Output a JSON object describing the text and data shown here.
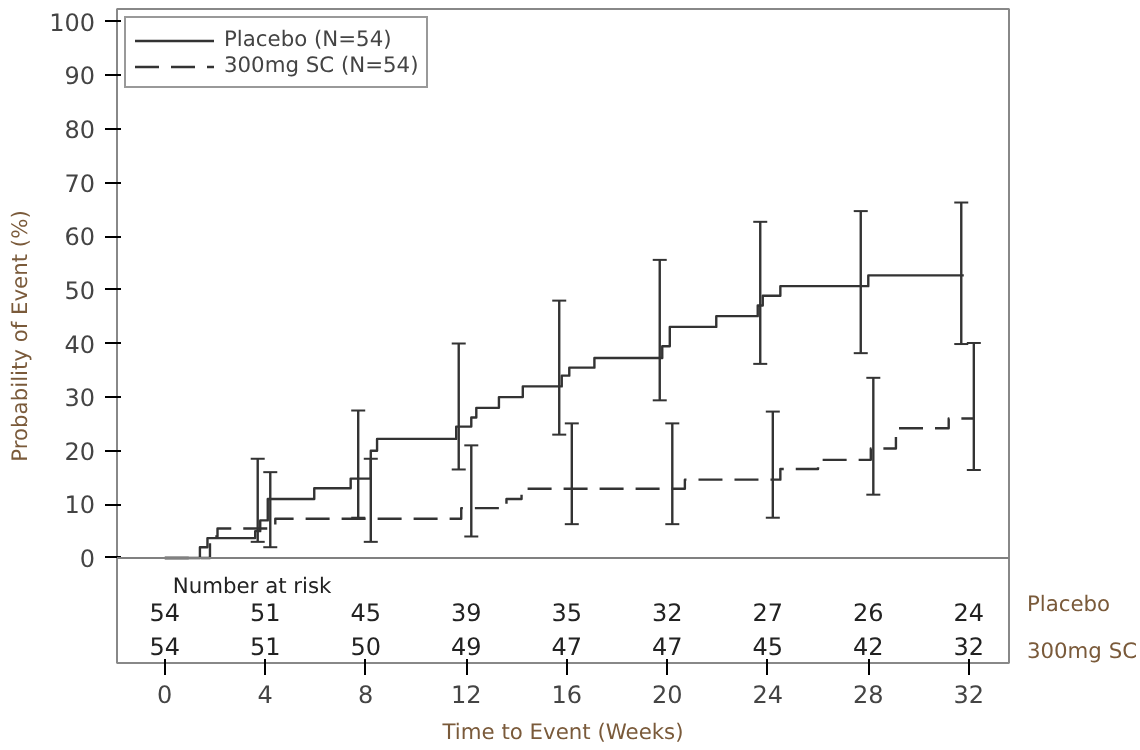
{
  "chart_data": {
    "type": "step",
    "xlabel": "Time to Event (Weeks)",
    "ylabel": "Probability of Event (%)",
    "xlim": [
      -1.9,
      33.6
    ],
    "ylim": [
      -19.6,
      102.4
    ],
    "xticks": [
      0,
      4,
      8,
      12,
      16,
      20,
      24,
      28,
      32
    ],
    "yticks": [
      0,
      10,
      20,
      30,
      40,
      50,
      60,
      70,
      80,
      90,
      100
    ],
    "grid": false,
    "legend": "top left",
    "ref_lines": [
      {
        "axis": "y",
        "value": 0,
        "color": "#808080",
        "line_style": "solid"
      }
    ],
    "series": [
      {
        "name": "Placebo (N=54)",
        "color": "#333333",
        "line_style": "solid",
        "x": [
          0,
          1.4,
          1.7,
          3.6,
          3.7,
          3.8,
          4.1,
          5.95,
          7.4,
          7.7,
          8.2,
          8.45,
          11.6,
          11.7,
          12.2,
          12.4,
          13.3,
          14.25,
          15.7,
          15.8,
          16.1,
          17.1,
          19.7,
          19.8,
          20.1,
          21.95,
          23.6,
          23.7,
          23.8,
          24.5,
          27.7,
          28.0,
          31.7,
          31.8
        ],
        "values": [
          0,
          2,
          3.7,
          5,
          5,
          7,
          11,
          13,
          14.8,
          14.8,
          20,
          22.2,
          24.5,
          24.5,
          26.2,
          28,
          30,
          32,
          32,
          34,
          35.5,
          37.3,
          37.3,
          39.5,
          43.1,
          45.1,
          47.1,
          47.1,
          48.9,
          50.7,
          50.7,
          52.7,
          52.7,
          52.7
        ],
        "errors": [
          null,
          null,
          null,
          null,
          [
            3,
            18.5
          ],
          null,
          null,
          null,
          null,
          [
            7.5,
            27.5
          ],
          null,
          null,
          null,
          [
            16.5,
            40
          ],
          null,
          null,
          null,
          null,
          [
            23,
            48
          ],
          null,
          null,
          null,
          [
            29.4,
            55.6
          ],
          null,
          null,
          null,
          null,
          [
            36.2,
            62.7
          ],
          null,
          null,
          [
            38.2,
            64.7
          ],
          null,
          [
            39.9,
            66.3
          ],
          null
        ]
      },
      {
        "name": "300mg SC (N=54)",
        "color": "#333333",
        "line_style": "dashed",
        "x": [
          0,
          1.8,
          2.1,
          4.2,
          4.4,
          8.2,
          11.8,
          12.2,
          13.6,
          14.2,
          16.2,
          20.2,
          20.7,
          24.2,
          24.5,
          26,
          28.1,
          28.2,
          29.1,
          31.2,
          32.2
        ],
        "values": [
          0,
          4,
          5.5,
          5.5,
          7.3,
          7.3,
          9.3,
          9.3,
          11,
          12.9,
          12.9,
          12.9,
          14.6,
          14.6,
          16.6,
          18.3,
          20.4,
          20.4,
          24.2,
          26,
          26
        ],
        "errors": [
          null,
          null,
          null,
          [
            2,
            16
          ],
          null,
          [
            3,
            18.5
          ],
          null,
          [
            4,
            21
          ],
          null,
          null,
          [
            6.3,
            25.1
          ],
          [
            6.3,
            25.1
          ],
          null,
          [
            7.5,
            27.3
          ],
          null,
          null,
          null,
          [
            11.8,
            33.6
          ],
          null,
          null,
          [
            16.4,
            40.1
          ]
        ]
      }
    ],
    "annotations": [
      "Number at risk",
      "54",
      "51",
      "45",
      "39",
      "35",
      "32",
      "27",
      "26",
      "24",
      "54",
      "51",
      "50",
      "49",
      "47",
      "47",
      "45",
      "42",
      "32",
      "Placebo",
      "300mg SC"
    ]
  }
}
